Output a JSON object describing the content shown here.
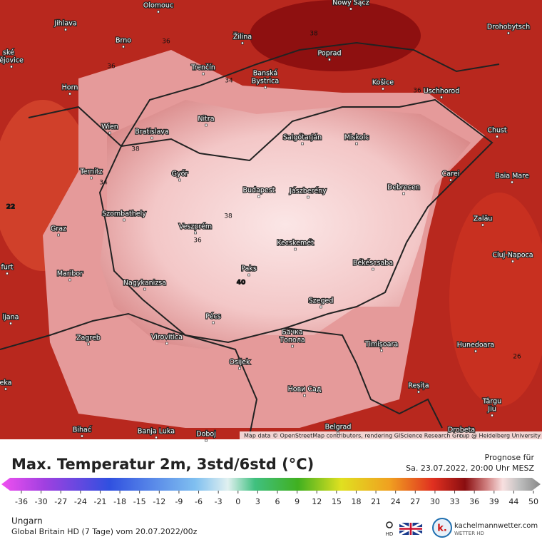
{
  "map": {
    "cities": [
      "Olomouc",
      "Nowy Sącz",
      "Jihlava",
      "Brno",
      "Žilina",
      "Poprad",
      "Drohobytsch",
      "ské",
      "ějovice",
      "Trenčín",
      "Banská",
      "Bystrica",
      "Košice",
      "Uschhorod",
      "Horn",
      "Nitra",
      "Wien",
      "Bratislava",
      "Salgótarján",
      "Miskolc",
      "Chust",
      "Ternitz",
      "Győr",
      "Carei",
      "Baia Mare",
      "Budapest",
      "Jászberény",
      "Debrecen",
      "Szombathely",
      "Graz",
      "Veszprém",
      "Zalău",
      "Kecskemét",
      "Cluj-Napoca",
      "Maribor",
      "Paks",
      "Békéscsaba",
      "Nagykanizsa",
      "furt",
      "ljana",
      "Pécs",
      "Szeged",
      "Zagreb",
      "Virovitica",
      "Бачка",
      "Топола",
      "Timișoara",
      "Hunedoara",
      "eka",
      "Osijek",
      "Нови Сад",
      "Reșița",
      "Târgu",
      "Jiu",
      "Bihać",
      "Banja Luka",
      "Doboj",
      "Belgrad",
      "Drobeta"
    ],
    "contour_labels": [
      36,
      36,
      38,
      34,
      36,
      38,
      34,
      22,
      38,
      36,
      40,
      26
    ],
    "attribution": "Map data © OpenStreetMap contributors, rendering GIScience Research Group @ Heidelberg University"
  },
  "footer": {
    "title": "Max. Temperatur 2m, 3std/6std (°C)",
    "forecast_label": "Prognose für",
    "forecast_time": "Sa. 23.07.2022, 20:00 Uhr MESZ",
    "colorbar_ticks": [
      -36,
      -30,
      -27,
      -24,
      -21,
      -18,
      -15,
      -12,
      -9,
      -6,
      -3,
      0,
      3,
      6,
      9,
      12,
      15,
      18,
      21,
      24,
      27,
      30,
      33,
      36,
      39,
      44,
      50
    ],
    "region": "Ungarn",
    "model": "Global Britain HD (7 Tage) vom 20.07.2022/00z",
    "hd": "HD",
    "logo_name": "kachelmannwetter.com",
    "logo_sub": "WETTER HD"
  }
}
